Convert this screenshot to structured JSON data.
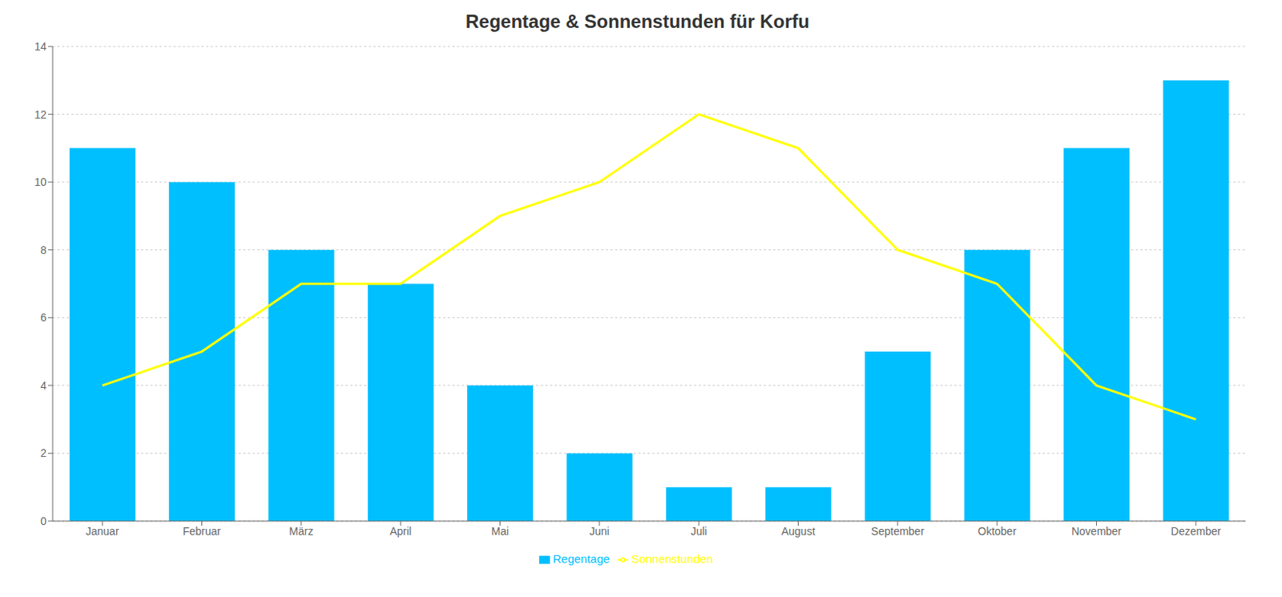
{
  "chart_data": {
    "type": "bar",
    "title": "Regentage & Sonnenstunden für Korfu",
    "categories": [
      "Januar",
      "Februar",
      "März",
      "April",
      "Mai",
      "Juni",
      "Juli",
      "August",
      "September",
      "Oktober",
      "November",
      "Dezember"
    ],
    "series": [
      {
        "name": "Regentage",
        "type": "bar",
        "color": "#00BFFF",
        "values": [
          11,
          10,
          8,
          7,
          4,
          2,
          1,
          1,
          5,
          8,
          11,
          13
        ]
      },
      {
        "name": "Sonnenstunden",
        "type": "line",
        "color": "#FFFF00",
        "values": [
          4,
          5,
          7,
          7,
          9,
          10,
          12,
          11,
          8,
          7,
          4,
          3
        ]
      }
    ],
    "ylim": [
      0,
      14
    ],
    "yticks": [
      0,
      2,
      4,
      6,
      8,
      10,
      12,
      14
    ],
    "grid": true,
    "legend": "bottom"
  }
}
